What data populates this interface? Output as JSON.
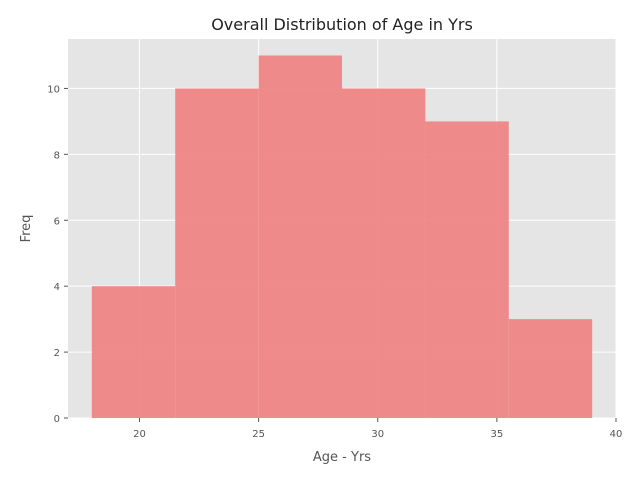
{
  "chart_data": {
    "type": "bar",
    "title": "Overall Distribution of Age in Yrs",
    "xlabel": "Age - Yrs",
    "ylabel": "Freq",
    "xlim": [
      17,
      40
    ],
    "ylim": [
      0,
      11.5
    ],
    "x_ticks": [
      20,
      25,
      30,
      35,
      40
    ],
    "y_ticks": [
      0,
      2,
      4,
      6,
      8,
      10
    ],
    "bins": [
      {
        "start": 18.0,
        "end": 21.5,
        "value": 4
      },
      {
        "start": 21.5,
        "end": 25.0,
        "value": 10
      },
      {
        "start": 25.0,
        "end": 28.5,
        "value": 11
      },
      {
        "start": 28.5,
        "end": 32.0,
        "value": 10
      },
      {
        "start": 32.0,
        "end": 35.5,
        "value": 9
      },
      {
        "start": 35.5,
        "end": 39.0,
        "value": 3
      }
    ],
    "grid": true,
    "colors": {
      "bar": "#f08080",
      "background": "#e5e5e5",
      "grid": "#ffffff"
    }
  }
}
